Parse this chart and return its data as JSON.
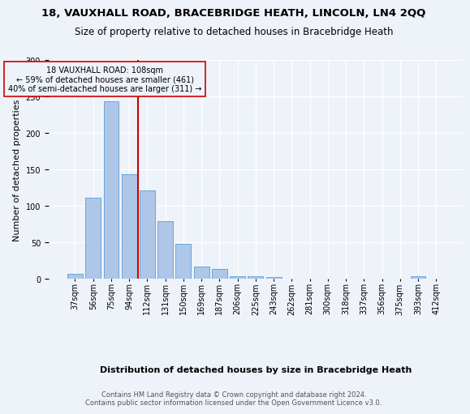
{
  "title_line1": "18, VAUXHALL ROAD, BRACEBRIDGE HEATH, LINCOLN, LN4 2QQ",
  "title_line2": "Size of property relative to detached houses in Bracebridge Heath",
  "xlabel": "Distribution of detached houses by size in Bracebridge Heath",
  "ylabel": "Number of detached properties",
  "footnote": "Contains HM Land Registry data © Crown copyright and database right 2024.\nContains public sector information licensed under the Open Government Licence v3.0.",
  "bar_labels": [
    "37sqm",
    "56sqm",
    "75sqm",
    "94sqm",
    "112sqm",
    "131sqm",
    "150sqm",
    "169sqm",
    "187sqm",
    "206sqm",
    "225sqm",
    "243sqm",
    "262sqm",
    "281sqm",
    "300sqm",
    "318sqm",
    "337sqm",
    "356sqm",
    "375sqm",
    "393sqm",
    "412sqm"
  ],
  "bar_values": [
    7,
    111,
    243,
    144,
    121,
    79,
    48,
    17,
    14,
    4,
    3,
    2,
    0,
    0,
    0,
    0,
    0,
    0,
    0,
    3,
    0
  ],
  "bar_color": "#aec6e8",
  "bar_edgecolor": "#5a9fd4",
  "annotation_text_line1": "18 VAUXHALL ROAD: 108sqm",
  "annotation_text_line2": "← 59% of detached houses are smaller (461)",
  "annotation_text_line3": "40% of semi-detached houses are larger (311) →",
  "vline_color": "#cc0000",
  "annotation_box_edgecolor": "#cc0000",
  "ylim": [
    0,
    300
  ],
  "yticks": [
    0,
    50,
    100,
    150,
    200,
    250,
    300
  ],
  "background_color": "#eef2f9",
  "plot_bg_color": "#eef2f9",
  "title_fontsize": 9.5,
  "subtitle_fontsize": 8.5,
  "ylabel_fontsize": 8,
  "xlabel_fontsize": 8,
  "tick_fontsize": 7,
  "footnote_fontsize": 6
}
